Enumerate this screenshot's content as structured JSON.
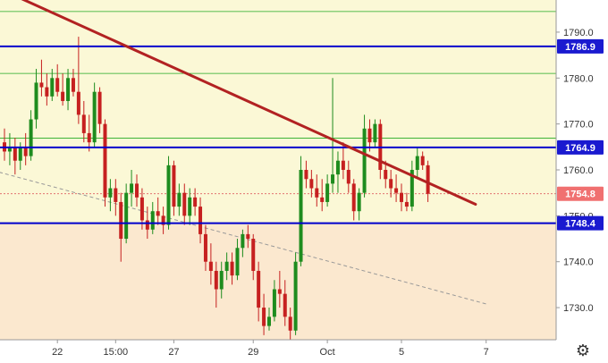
{
  "chart_data": {
    "type": "candlestick",
    "title": "",
    "colors": {
      "up": "#1e8c1e",
      "down": "#c62020",
      "trend_line": "#b22222",
      "level_line": "#0000cc",
      "thin_level": "#22aa22",
      "current_price_line": "#e06060",
      "dashed_trend": "#999999",
      "band_upper": "#fbf8d6",
      "band_lower": "#fbe8cf",
      "badge": "#1a1ad0",
      "current_badge": "#f07070"
    },
    "y_axis": {
      "min": 1723,
      "max": 1797,
      "ticks": [
        "1730.0",
        "1740.0",
        "1750.0",
        "1760.0",
        "1770.0",
        "1780.0",
        "1790.0"
      ],
      "position": "right"
    },
    "x_axis": {
      "ticks": [
        {
          "label": "22",
          "index": 10
        },
        {
          "label": "15:00",
          "index": 21
        },
        {
          "label": "27",
          "index": 32
        },
        {
          "label": "29",
          "index": 47
        },
        {
          "label": "Oct",
          "index": 61
        },
        {
          "label": "5",
          "index": 75
        },
        {
          "label": "7",
          "index": 91
        }
      ]
    },
    "levels": [
      {
        "value": 1786.9,
        "label": "1786.9",
        "style": "thick-blue"
      },
      {
        "value": 1764.9,
        "label": "1764.9",
        "style": "thick-blue"
      },
      {
        "value": 1748.4,
        "label": "1748.4",
        "style": "thick-blue"
      }
    ],
    "thin_levels": [
      1794.5,
      1781.0,
      1766.9
    ],
    "current_price": {
      "value": 1754.8,
      "label": "1754.8"
    },
    "trend_line": {
      "from": {
        "index": -2,
        "value": 1800
      },
      "to": {
        "index": 89,
        "value": 1752.5
      }
    },
    "dashed_trend_line": {
      "from": {
        "index": -1,
        "value": 1759.5
      },
      "to": {
        "index": 91,
        "value": 1730.8
      }
    },
    "ohlc": [
      [
        1766,
        1769,
        1762,
        1764
      ],
      [
        1764,
        1768,
        1761,
        1765
      ],
      [
        1765,
        1767,
        1759,
        1762
      ],
      [
        1762,
        1766,
        1760,
        1765
      ],
      [
        1765,
        1768,
        1761,
        1763
      ],
      [
        1763,
        1773,
        1762,
        1771
      ],
      [
        1771,
        1782,
        1769,
        1779
      ],
      [
        1779,
        1784,
        1776,
        1778
      ],
      [
        1778,
        1781,
        1774,
        1776
      ],
      [
        1776,
        1782,
        1775,
        1780
      ],
      [
        1780,
        1783,
        1776,
        1777
      ],
      [
        1777,
        1781,
        1774,
        1775
      ],
      [
        1775,
        1782,
        1773,
        1780
      ],
      [
        1780,
        1782,
        1776,
        1777
      ],
      [
        1777,
        1789,
        1770,
        1772
      ],
      [
        1772,
        1775,
        1766,
        1768
      ],
      [
        1768,
        1772,
        1764,
        1766
      ],
      [
        1766,
        1779,
        1765,
        1777
      ],
      [
        1777,
        1778,
        1768,
        1770
      ],
      [
        1770,
        1771,
        1752,
        1754
      ],
      [
        1754,
        1758,
        1751,
        1756
      ],
      [
        1756,
        1758,
        1750,
        1753
      ],
      [
        1753,
        1755,
        1740,
        1745
      ],
      [
        1745,
        1757,
        1744,
        1755
      ],
      [
        1755,
        1760,
        1752,
        1757
      ],
      [
        1757,
        1759,
        1752,
        1754
      ],
      [
        1754,
        1756,
        1747,
        1749
      ],
      [
        1749,
        1752,
        1745,
        1747
      ],
      [
        1747,
        1753,
        1746,
        1751
      ],
      [
        1751,
        1754,
        1748,
        1750
      ],
      [
        1750,
        1752,
        1746,
        1748
      ],
      [
        1748,
        1763,
        1747,
        1761
      ],
      [
        1761,
        1762,
        1750,
        1752
      ],
      [
        1752,
        1757,
        1750,
        1755
      ],
      [
        1755,
        1757,
        1748,
        1750
      ],
      [
        1750,
        1756,
        1748,
        1754
      ],
      [
        1754,
        1756,
        1750,
        1752
      ],
      [
        1752,
        1754,
        1744,
        1746
      ],
      [
        1746,
        1748,
        1738,
        1740
      ],
      [
        1740,
        1744,
        1735,
        1738
      ],
      [
        1738,
        1740,
        1730,
        1734
      ],
      [
        1734,
        1740,
        1732,
        1738
      ],
      [
        1738,
        1742,
        1736,
        1740
      ],
      [
        1740,
        1742,
        1735,
        1737
      ],
      [
        1737,
        1745,
        1736,
        1743
      ],
      [
        1743,
        1747,
        1741,
        1746
      ],
      [
        1746,
        1748,
        1743,
        1745
      ],
      [
        1745,
        1746,
        1736,
        1738
      ],
      [
        1738,
        1740,
        1727,
        1730
      ],
      [
        1730,
        1733,
        1724,
        1726
      ],
      [
        1726,
        1730,
        1725,
        1728
      ],
      [
        1728,
        1736,
        1727,
        1734
      ],
      [
        1734,
        1738,
        1730,
        1733
      ],
      [
        1733,
        1736,
        1726,
        1728
      ],
      [
        1728,
        1730,
        1723,
        1725
      ],
      [
        1725,
        1742,
        1724,
        1740
      ],
      [
        1740,
        1763,
        1739,
        1760
      ],
      [
        1760,
        1762,
        1756,
        1758
      ],
      [
        1758,
        1760,
        1754,
        1756
      ],
      [
        1756,
        1759,
        1752,
        1754
      ],
      [
        1754,
        1758,
        1751,
        1753
      ],
      [
        1753,
        1759,
        1752,
        1757
      ],
      [
        1757,
        1780,
        1755,
        1759
      ],
      [
        1759,
        1764,
        1755,
        1762
      ],
      [
        1762,
        1766,
        1758,
        1760
      ],
      [
        1760,
        1762,
        1755,
        1757
      ],
      [
        1757,
        1758,
        1749,
        1751
      ],
      [
        1751,
        1756,
        1749,
        1755
      ],
      [
        1755,
        1772,
        1754,
        1769
      ],
      [
        1769,
        1771,
        1764,
        1766
      ],
      [
        1766,
        1771,
        1765,
        1770
      ],
      [
        1770,
        1771,
        1758,
        1760
      ],
      [
        1760,
        1762,
        1756,
        1758
      ],
      [
        1758,
        1760,
        1754,
        1756
      ],
      [
        1756,
        1759,
        1753,
        1755
      ],
      [
        1755,
        1757,
        1751,
        1753
      ],
      [
        1753,
        1755,
        1751,
        1752
      ],
      [
        1752,
        1762,
        1751,
        1760
      ],
      [
        1760,
        1765,
        1758,
        1763
      ],
      [
        1763,
        1764,
        1760,
        1761
      ],
      [
        1761,
        1762,
        1753,
        1754.8
      ]
    ]
  }
}
